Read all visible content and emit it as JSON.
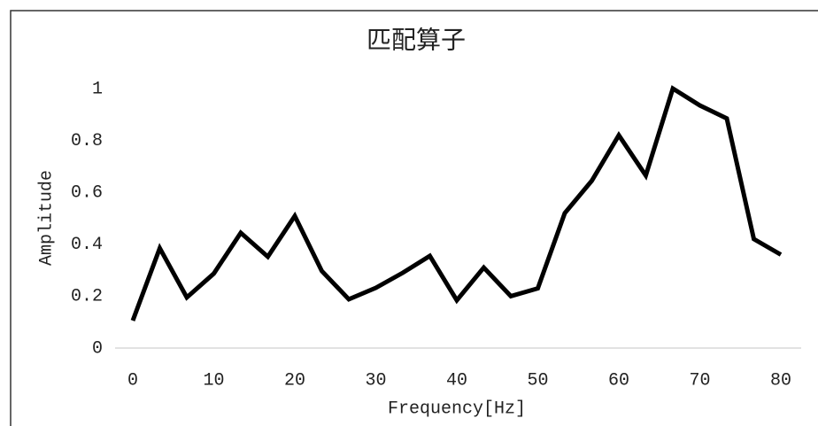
{
  "chart_data": {
    "type": "line",
    "title": "匹配算子",
    "x_label": "Frequency[Hz]",
    "y_label": "Amplitude",
    "x": [
      0,
      3.33,
      6.67,
      10,
      13.33,
      16.67,
      20,
      23.33,
      26.67,
      30,
      33.33,
      36.67,
      40,
      43.33,
      46.67,
      50,
      53.33,
      56.67,
      60,
      63.33,
      66.67,
      70,
      73.33,
      76.67,
      80
    ],
    "series": [
      {
        "name": "Amplitude",
        "color": "#000000",
        "values": [
          0.106,
          0.385,
          0.195,
          0.287,
          0.444,
          0.352,
          0.509,
          0.297,
          0.188,
          0.232,
          0.29,
          0.355,
          0.184,
          0.31,
          0.2,
          0.23,
          0.52,
          0.645,
          0.82,
          0.665,
          1.0,
          0.935,
          0.885,
          0.42,
          0.36
        ]
      }
    ],
    "xlim": [
      0,
      80
    ],
    "xticks": [
      0,
      10,
      20,
      30,
      40,
      50,
      60,
      70,
      80
    ],
    "ylim": [
      0,
      1
    ],
    "yticks": [
      0,
      0.2,
      0.4,
      0.6,
      0.8,
      1
    ],
    "grid": false
  }
}
